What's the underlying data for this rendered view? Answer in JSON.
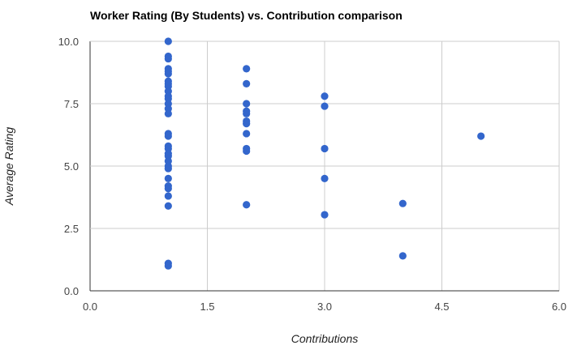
{
  "chart_data": {
    "type": "scatter",
    "title": "Worker Rating (By Students) vs. Contribution comparison",
    "xlabel": "Contributions",
    "ylabel": "Average Rating",
    "xlim": [
      0,
      6
    ],
    "ylim": [
      0,
      10
    ],
    "x_ticks": [
      "0.0",
      "1.5",
      "3.0",
      "4.5",
      "6.0"
    ],
    "y_ticks": [
      "0.0",
      "2.5",
      "5.0",
      "7.5",
      "10.0"
    ],
    "grid": true,
    "legend": "none",
    "point_color": "#3366cc",
    "points": [
      [
        1,
        10.0
      ],
      [
        1,
        9.4
      ],
      [
        1,
        9.3
      ],
      [
        1,
        8.9
      ],
      [
        1,
        8.8
      ],
      [
        1,
        8.7
      ],
      [
        1,
        8.4
      ],
      [
        1,
        8.3
      ],
      [
        1,
        8.2
      ],
      [
        1,
        8.0
      ],
      [
        1,
        7.8
      ],
      [
        1,
        7.7
      ],
      [
        1,
        7.5
      ],
      [
        1,
        7.3
      ],
      [
        1,
        7.1
      ],
      [
        1,
        6.3
      ],
      [
        1,
        6.2
      ],
      [
        1,
        5.8
      ],
      [
        1,
        5.7
      ],
      [
        1,
        5.5
      ],
      [
        1,
        5.4
      ],
      [
        1,
        5.2
      ],
      [
        1,
        5.0
      ],
      [
        1,
        4.9
      ],
      [
        1,
        4.5
      ],
      [
        1,
        4.2
      ],
      [
        1,
        4.1
      ],
      [
        1,
        3.8
      ],
      [
        1,
        3.4
      ],
      [
        1,
        1.1
      ],
      [
        1,
        1.0
      ],
      [
        2,
        8.9
      ],
      [
        2,
        8.3
      ],
      [
        2,
        7.5
      ],
      [
        2,
        7.2
      ],
      [
        2,
        7.1
      ],
      [
        2,
        6.8
      ],
      [
        2,
        6.7
      ],
      [
        2,
        6.3
      ],
      [
        2,
        5.7
      ],
      [
        2,
        5.6
      ],
      [
        2,
        3.45
      ],
      [
        3,
        7.8
      ],
      [
        3,
        7.4
      ],
      [
        3,
        5.7
      ],
      [
        3,
        4.5
      ],
      [
        3,
        3.05
      ],
      [
        4,
        3.5
      ],
      [
        4,
        1.4
      ],
      [
        5,
        6.2
      ]
    ]
  }
}
